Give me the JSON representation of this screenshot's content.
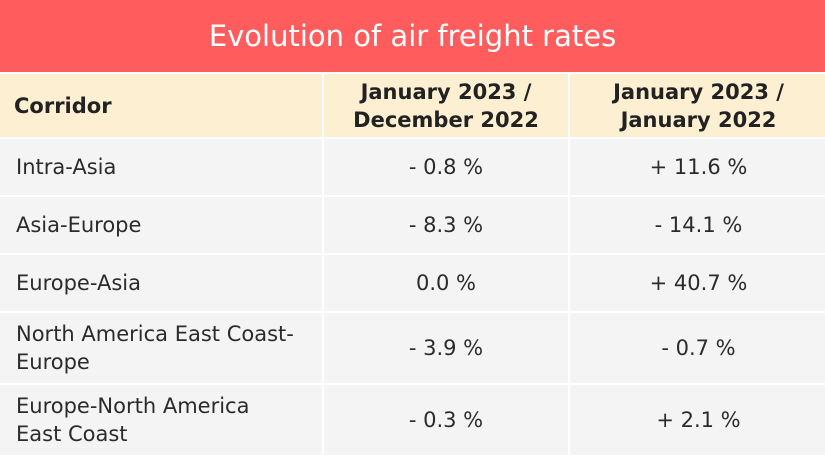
{
  "chart_data": {
    "type": "table",
    "title": "Evolution of air freight rates",
    "columns": [
      "Corridor",
      "January 2023 / December 2022",
      "January 2023 / January 2022"
    ],
    "column_lines": [
      [
        "Corridor"
      ],
      [
        "January 2023 /",
        "December 2022"
      ],
      [
        "January 2023 /",
        "January 2022"
      ]
    ],
    "rows": [
      {
        "corridor": "Intra-Asia",
        "mom": "- 0.8 %",
        "yoy": "+ 11.6 %",
        "mom_value": -0.8,
        "yoy_value": 11.6
      },
      {
        "corridor": "Asia-Europe",
        "mom": "- 8.3 %",
        "yoy": "- 14.1 %",
        "mom_value": -8.3,
        "yoy_value": -14.1
      },
      {
        "corridor": "Europe-Asia",
        "mom": "0.0 %",
        "yoy": "+ 40.7 %",
        "mom_value": 0.0,
        "yoy_value": 40.7
      },
      {
        "corridor": "North America East Coast-Europe",
        "mom": "- 3.9 %",
        "yoy": "- 0.7 %",
        "mom_value": -3.9,
        "yoy_value": -0.7
      },
      {
        "corridor": "Europe-North America East Coast",
        "mom": "- 0.3 %",
        "yoy": "+ 2.1 %",
        "mom_value": -0.3,
        "yoy_value": 2.1
      }
    ]
  },
  "colors": {
    "title_background": "#ff5d5d",
    "header_background": "#fdf0d2",
    "row_background": "#f4f4f4",
    "text": "#2b2b2b"
  }
}
